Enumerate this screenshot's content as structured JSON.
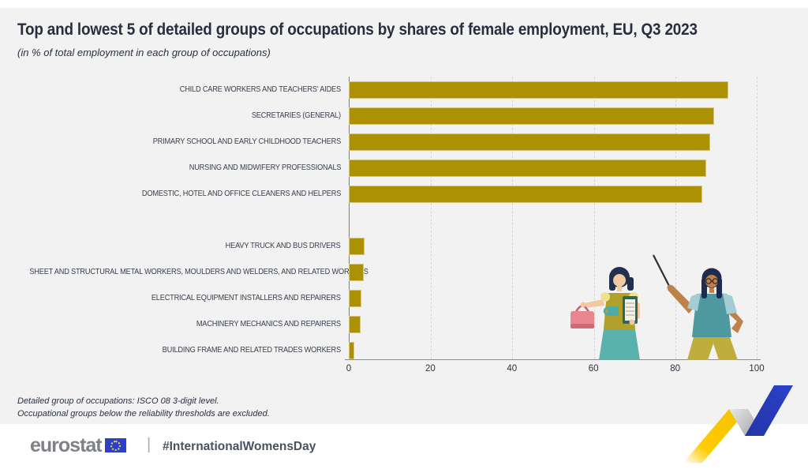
{
  "title": "Top and lowest 5 of detailed groups of occupations by shares of female employment, EU, Q3 2023",
  "subtitle": "(in % of total employment in each group of occupations)",
  "footnotes": [
    "Detailed group of occupations: ISCO 08 3-digit level.",
    "Occupational groups below the reliability thresholds are excluded."
  ],
  "footer": {
    "logo_text": "eurostat",
    "flag_icon": "eu-flag-icon",
    "separator": "|",
    "hashtag": "#InternationalWomensDay"
  },
  "colors": {
    "background": "#F2F2F3",
    "bar_gold": "#AC9104",
    "title_navy": "#272E3E",
    "footer_white": "#FFFFFF",
    "flag_blue": "#2B41C9",
    "ribbon_blue": "#2B41C9",
    "ribbon_yellow": "#FFCB00",
    "teal": "#58B1AB"
  },
  "chart_data": {
    "type": "bar",
    "orientation": "horizontal",
    "unit": "% of total employment",
    "xlim": [
      0,
      100
    ],
    "x_ticks": [
      0,
      20,
      40,
      60,
      80,
      100
    ],
    "grid": "vertical-dashed",
    "legend": "none",
    "groups": [
      {
        "name": "top-5-highest-female-share",
        "items": [
          {
            "label": "CHILD CARE WORKERS AND TEACHERS' AIDES",
            "value": 93
          },
          {
            "label": "SECRETARIES (GENERAL)",
            "value": 89.6
          },
          {
            "label": "PRIMARY SCHOOL AND EARLY CHILDHOOD TEACHERS",
            "value": 88.5
          },
          {
            "label": "NURSING AND MIDWIFERY PROFESSIONALS",
            "value": 87.7
          },
          {
            "label": "DOMESTIC, HOTEL AND OFFICE CLEANERS AND HELPERS",
            "value": 86.7
          }
        ]
      },
      {
        "name": "lowest-5-female-share",
        "items": [
          {
            "label": "HEAVY TRUCK AND BUS DRIVERS",
            "value": 3.8
          },
          {
            "label": "SHEET AND STRUCTURAL METAL WORKERS, MOULDERS AND WELDERS, AND RELATED WORKERS",
            "value": 3.6
          },
          {
            "label": "ELECTRICAL EQUIPMENT INSTALLERS AND REPAIRERS",
            "value": 3.1
          },
          {
            "label": "MACHINERY MECHANICS AND REPAIRERS",
            "value": 2.9
          },
          {
            "label": "BUILDING FRAME AND RELATED TRADES WORKERS",
            "value": 1.4
          }
        ]
      }
    ]
  },
  "illustration": {
    "left_figure": "woman-with-handbag-cup-and-notepad",
    "right_figure": "woman-with-glasses-and-pointer",
    "decoration": "yellow-blue-zigzag-ribbon"
  }
}
